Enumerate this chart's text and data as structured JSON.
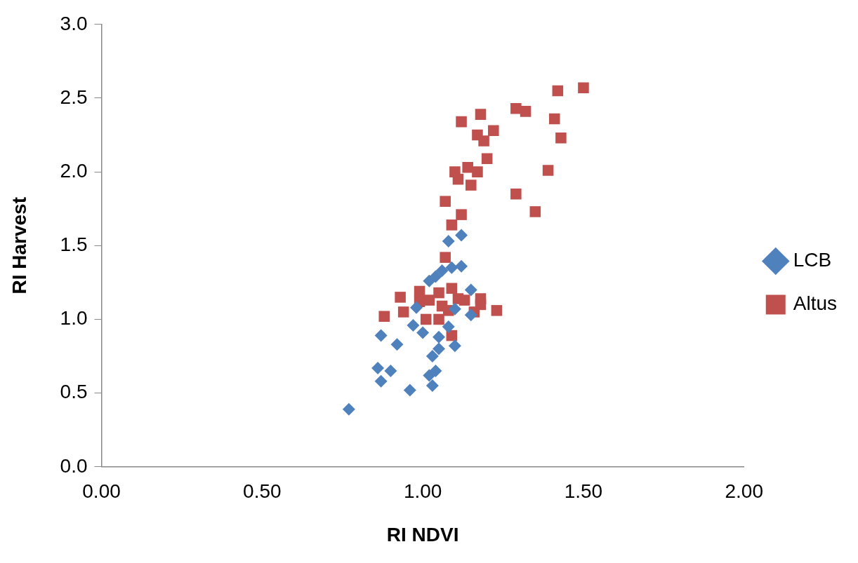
{
  "chart_data": {
    "type": "scatter",
    "xlabel": "RI NDVI",
    "ylabel": "RI Harvest",
    "xlim": [
      0,
      2
    ],
    "ylim": [
      0,
      3
    ],
    "xticks": [
      {
        "value": 0,
        "label": "0.00"
      },
      {
        "value": 0.5,
        "label": "0.50"
      },
      {
        "value": 1,
        "label": "1.00"
      },
      {
        "value": 1.5,
        "label": "1.50"
      },
      {
        "value": 2,
        "label": "2.00"
      }
    ],
    "yticks": [
      {
        "value": 0,
        "label": "0.0"
      },
      {
        "value": 0.5,
        "label": "0.5"
      },
      {
        "value": 1,
        "label": "1.0"
      },
      {
        "value": 1.5,
        "label": "1.5"
      },
      {
        "value": 2,
        "label": "2.0"
      },
      {
        "value": 2.5,
        "label": "2.5"
      },
      {
        "value": 3,
        "label": "3.0"
      }
    ],
    "grid": false,
    "legend": "right",
    "series": [
      {
        "name": "LCB",
        "color": "#4f81bd",
        "marker": "diamond",
        "x": [
          0.77,
          0.96,
          0.87,
          0.86,
          0.9,
          1.03,
          1.02,
          1.04,
          1.03,
          1.05,
          1.05,
          1.1,
          0.87,
          0.92,
          0.97,
          1.0,
          1.08,
          1.1,
          1.15,
          1.06,
          1.02,
          1.09,
          1.12,
          1.08,
          1.12,
          1.15,
          0.98,
          1.04
        ],
        "values": [
          0.39,
          0.52,
          0.58,
          0.67,
          0.65,
          0.55,
          0.62,
          0.65,
          0.75,
          0.8,
          0.88,
          0.82,
          0.89,
          0.83,
          0.96,
          0.91,
          0.95,
          1.07,
          1.2,
          1.33,
          1.26,
          1.35,
          1.36,
          1.53,
          1.57,
          1.03,
          1.08,
          1.29
        ]
      },
      {
        "name": "Altus",
        "color": "#c0504d",
        "marker": "square",
        "x": [
          1.5,
          1.42,
          1.29,
          1.32,
          1.41,
          1.43,
          1.18,
          1.12,
          1.22,
          1.17,
          1.19,
          1.2,
          1.14,
          1.39,
          1.1,
          1.17,
          1.11,
          1.15,
          1.29,
          1.35,
          1.07,
          1.12,
          1.09,
          1.07,
          0.93,
          0.88,
          0.94,
          0.99,
          1.09,
          0.99,
          1.02,
          1.05,
          1.06,
          1.05,
          1.11,
          1.13,
          1.18,
          1.18,
          1.16,
          1.23,
          1.09,
          1.08,
          1.01
        ],
        "values": [
          2.57,
          2.55,
          2.43,
          2.41,
          2.36,
          2.23,
          2.39,
          2.34,
          2.28,
          2.25,
          2.21,
          2.09,
          2.03,
          2.01,
          2.0,
          2.0,
          1.95,
          1.91,
          1.85,
          1.73,
          1.8,
          1.71,
          1.64,
          1.42,
          1.15,
          1.02,
          1.05,
          1.19,
          1.21,
          1.12,
          1.13,
          1.18,
          1.09,
          1.0,
          1.14,
          1.13,
          1.14,
          1.1,
          1.05,
          1.06,
          0.89,
          1.06,
          1.0
        ]
      }
    ]
  }
}
